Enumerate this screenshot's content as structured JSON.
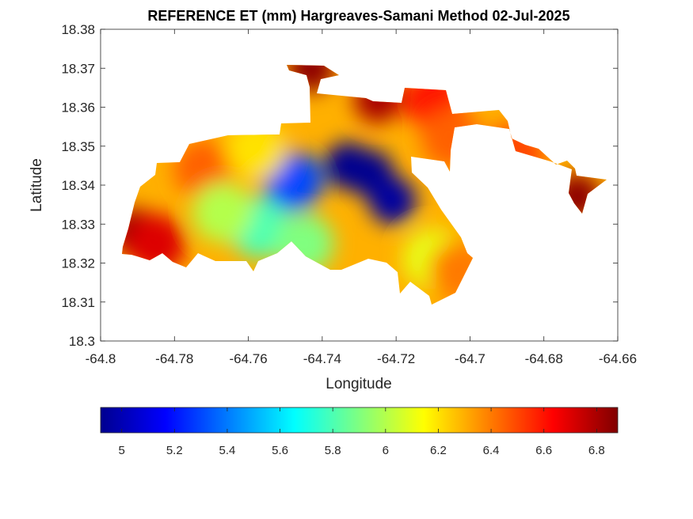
{
  "chart_data": {
    "type": "heatmap",
    "title": "REFERENCE ET (mm) Hargreaves-Samani Method  02-Jul-2025",
    "xlabel": "Longitude",
    "ylabel": "Latitude",
    "xlim": [
      -64.8,
      -64.66
    ],
    "ylim": [
      18.3,
      18.38
    ],
    "x_ticks": [
      -64.8,
      -64.78,
      -64.76,
      -64.74,
      -64.72,
      -64.7,
      -64.68,
      -64.66
    ],
    "x_tick_labels": [
      "-64.8",
      "-64.78",
      "-64.76",
      "-64.74",
      "-64.72",
      "-64.7",
      "-64.68",
      "-64.66"
    ],
    "y_ticks": [
      18.3,
      18.31,
      18.32,
      18.33,
      18.34,
      18.35,
      18.36,
      18.37,
      18.38
    ],
    "y_tick_labels": [
      "18.3",
      "18.31",
      "18.32",
      "18.33",
      "18.34",
      "18.35",
      "18.36",
      "18.37",
      "18.38"
    ],
    "colormap": "jet",
    "colorbar": {
      "range": [
        4.92,
        6.88
      ],
      "ticks": [
        5,
        5.2,
        5.4,
        5.6,
        5.8,
        6,
        6.2,
        6.4,
        6.6,
        6.8
      ],
      "tick_labels": [
        "5",
        "5.2",
        "5.4",
        "5.6",
        "5.8",
        "6",
        "6.2",
        "6.4",
        "6.6",
        "6.8"
      ],
      "placement": "bottom"
    },
    "grid": false,
    "approx_field": {
      "description_of_values": "estimated ET (mm) sampled on lon/lat grid",
      "hotspots": [
        {
          "lon": -64.733,
          "lat": 18.345,
          "value": 4.95
        },
        {
          "lon": -64.727,
          "lat": 18.343,
          "value": 4.95
        },
        {
          "lon": -64.721,
          "lat": 18.336,
          "value": 4.98
        },
        {
          "lon": -64.748,
          "lat": 18.341,
          "value": 5.3
        },
        {
          "lon": -64.791,
          "lat": 18.328,
          "value": 6.85
        },
        {
          "lon": -64.785,
          "lat": 18.325,
          "value": 6.7
        },
        {
          "lon": -64.743,
          "lat": 18.37,
          "value": 6.85
        },
        {
          "lon": -64.671,
          "lat": 18.337,
          "value": 6.85
        },
        {
          "lon": -64.725,
          "lat": 18.362,
          "value": 6.8
        },
        {
          "lon": -64.71,
          "lat": 18.362,
          "value": 6.6
        },
        {
          "lon": -64.772,
          "lat": 18.344,
          "value": 6.45
        },
        {
          "lon": -64.757,
          "lat": 18.329,
          "value": 5.8
        },
        {
          "lon": -64.745,
          "lat": 18.325,
          "value": 5.9
        },
        {
          "lon": -64.71,
          "lat": 18.321,
          "value": 6.1
        },
        {
          "lon": -64.703,
          "lat": 18.318,
          "value": 6.4
        },
        {
          "lon": -64.767,
          "lat": 18.333,
          "value": 6.0
        },
        {
          "lon": -64.758,
          "lat": 18.349,
          "value": 6.2
        },
        {
          "lon": -64.705,
          "lat": 18.352,
          "value": 6.45
        },
        {
          "lon": -64.688,
          "lat": 18.348,
          "value": 6.5
        }
      ]
    }
  }
}
